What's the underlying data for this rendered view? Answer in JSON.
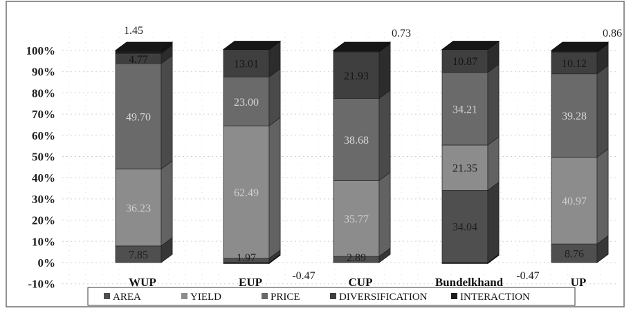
{
  "chart_data": {
    "type": "bar",
    "stacked": true,
    "three_d": true,
    "categories": [
      "WUP",
      "EUP",
      "CUP",
      "Bundelkhand",
      "UP"
    ],
    "series": [
      {
        "name": "AREA",
        "values": [
          7.85,
          1.97,
          2.89,
          34.04,
          8.76
        ]
      },
      {
        "name": "YIELD",
        "values": [
          36.23,
          62.49,
          35.77,
          21.35,
          40.97
        ]
      },
      {
        "name": "PRICE",
        "values": [
          49.7,
          23.0,
          38.68,
          34.21,
          39.28
        ]
      },
      {
        "name": "DIVERSIFICATION",
        "values": [
          4.77,
          13.01,
          21.93,
          10.87,
          10.12
        ]
      },
      {
        "name": "INTERACTION",
        "values": [
          1.45,
          -0.47,
          0.73,
          -0.47,
          0.86
        ]
      }
    ],
    "data_labels": [
      [
        "7.85",
        "36.23",
        "49.70",
        "4.77",
        "1.45"
      ],
      [
        "1.97",
        "62.49",
        "23.00",
        "13.01",
        "-0.47"
      ],
      [
        "2.89",
        "35.77",
        "38.68",
        "21.93",
        "0.73"
      ],
      [
        "34.04",
        "21.35",
        "34.21",
        "10.87",
        "-0.47"
      ],
      [
        "8.76",
        "40.97",
        "39.28",
        "10.12",
        "0.86"
      ]
    ],
    "y_ticks": [
      "-10%",
      "0%",
      "10%",
      "20%",
      "30%",
      "40%",
      "50%",
      "60%",
      "70%",
      "80%",
      "90%",
      "100%"
    ],
    "ylim": [
      -10,
      100
    ],
    "legend_position": "bottom",
    "grid": true,
    "colors": {
      "AREA": "#4f4f4f",
      "YIELD": "#8c8c8c",
      "PRICE": "#6a6a6a",
      "DIVERSIFICATION": "#3f3f3f",
      "INTERACTION": "#1c1c1c"
    }
  }
}
